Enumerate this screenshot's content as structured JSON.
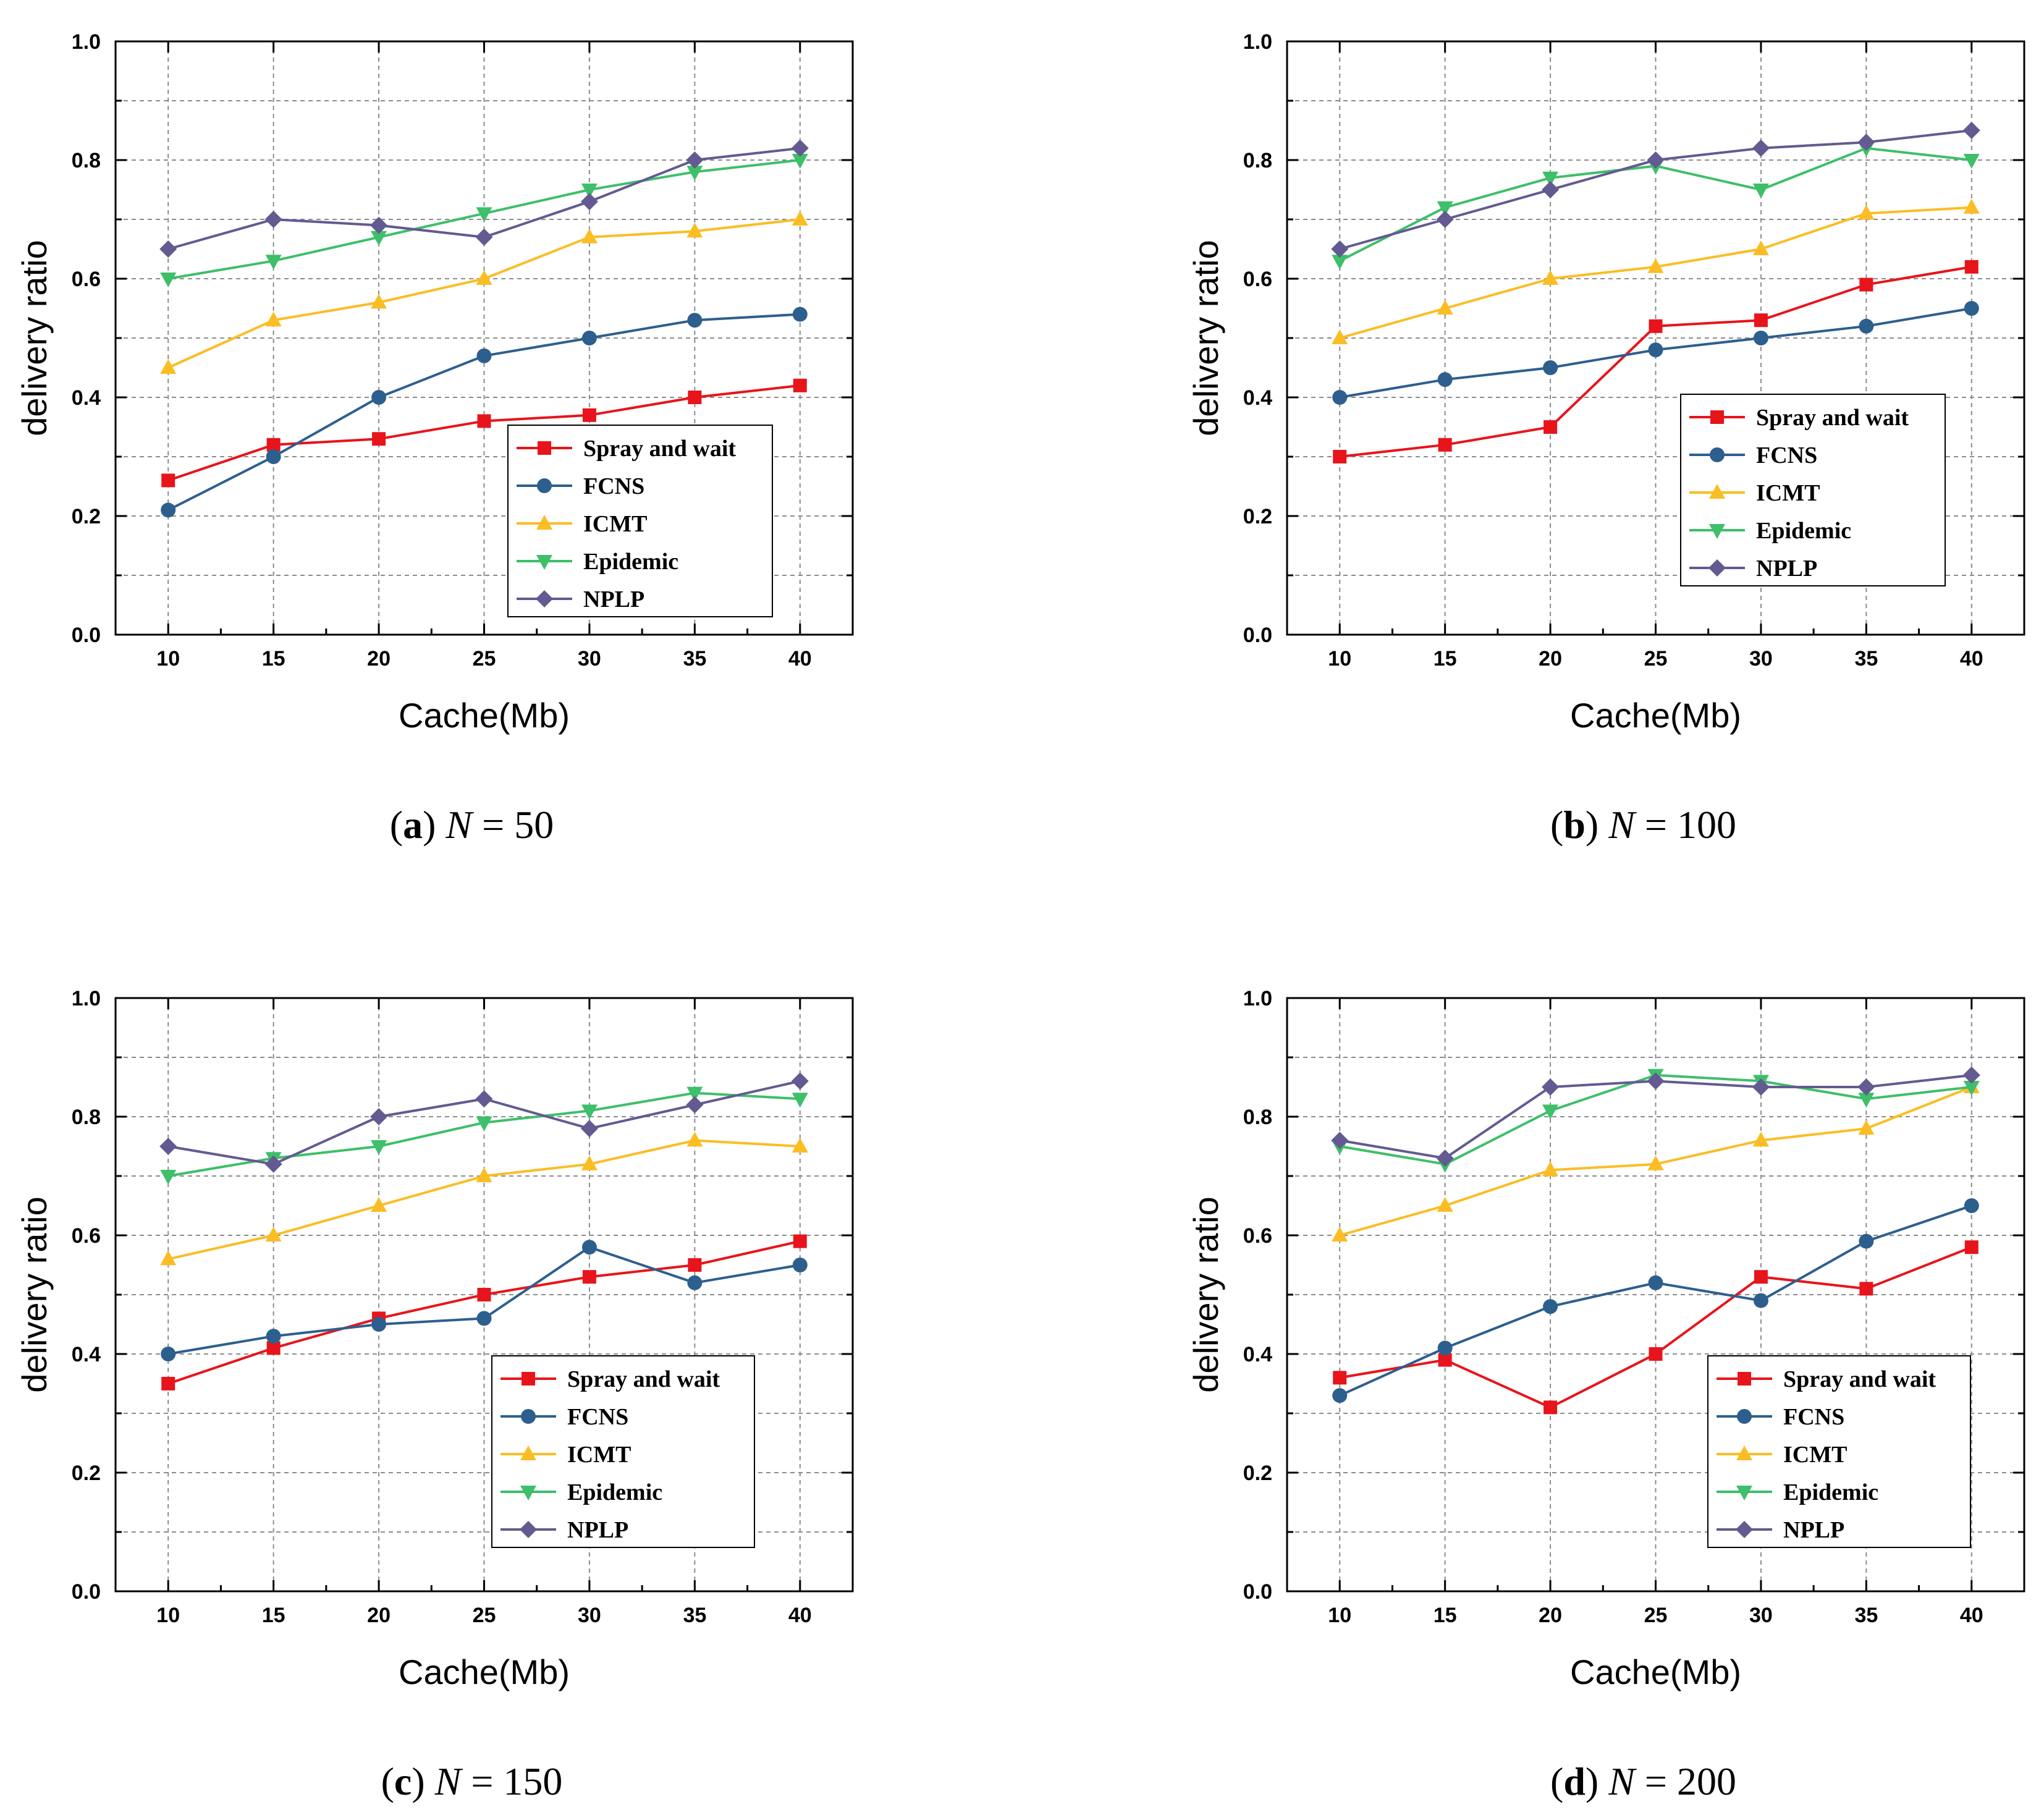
{
  "colors": {
    "Spray and wait": "#e8141b",
    "FCNS": "#2d5f8e",
    "ICMT": "#fbbd24",
    "Epidemic": "#3ebf6a",
    "NPLP": "#635a91"
  },
  "markers": {
    "Spray and wait": "square",
    "FCNS": "circle",
    "ICMT": "triangle-up",
    "Epidemic": "triangle-down",
    "NPLP": "diamond"
  },
  "chart_data": [
    {
      "type": "line",
      "caption_letter": "a",
      "caption_var": "N",
      "caption_eq": "= 50",
      "xlabel": "Cache(Mb)",
      "ylabel": "delivery ratio",
      "x": [
        10,
        15,
        20,
        25,
        30,
        35,
        40
      ],
      "xticks": [
        "10",
        "15",
        "20",
        "25",
        "30",
        "35",
        "40"
      ],
      "yticks": [
        "0.0",
        "0.2",
        "0.4",
        "0.6",
        "0.8",
        "1.0"
      ],
      "ylim": [
        0,
        1
      ],
      "grid": true,
      "legend_position": "lower-right",
      "series": [
        {
          "name": "Spray and wait",
          "values": [
            0.26,
            0.32,
            0.33,
            0.36,
            0.37,
            0.4,
            0.42
          ]
        },
        {
          "name": "FCNS",
          "values": [
            0.21,
            0.3,
            0.4,
            0.47,
            0.5,
            0.53,
            0.54
          ]
        },
        {
          "name": "ICMT",
          "values": [
            0.45,
            0.53,
            0.56,
            0.6,
            0.67,
            0.68,
            0.7
          ]
        },
        {
          "name": "Epidemic",
          "values": [
            0.6,
            0.63,
            0.67,
            0.71,
            0.75,
            0.78,
            0.8
          ]
        },
        {
          "name": "NPLP",
          "values": [
            0.65,
            0.7,
            0.69,
            0.67,
            0.73,
            0.8,
            0.82
          ]
        }
      ]
    },
    {
      "type": "line",
      "caption_letter": "b",
      "caption_var": "N",
      "caption_eq": "= 100",
      "xlabel": "Cache(Mb)",
      "ylabel": "delivery ratio",
      "x": [
        10,
        15,
        20,
        25,
        30,
        35,
        40
      ],
      "xticks": [
        "10",
        "15",
        "20",
        "25",
        "30",
        "35",
        "40"
      ],
      "yticks": [
        "0.0",
        "0.2",
        "0.4",
        "0.6",
        "0.8",
        "1.0"
      ],
      "ylim": [
        0,
        1
      ],
      "grid": true,
      "legend_position": "lower-right",
      "series": [
        {
          "name": "Spray and wait",
          "values": [
            0.3,
            0.32,
            0.35,
            0.52,
            0.53,
            0.59,
            0.62
          ]
        },
        {
          "name": "FCNS",
          "values": [
            0.4,
            0.43,
            0.45,
            0.48,
            0.5,
            0.52,
            0.55
          ]
        },
        {
          "name": "ICMT",
          "values": [
            0.5,
            0.55,
            0.6,
            0.62,
            0.65,
            0.71,
            0.72
          ]
        },
        {
          "name": "Epidemic",
          "values": [
            0.63,
            0.72,
            0.77,
            0.79,
            0.75,
            0.82,
            0.8
          ]
        },
        {
          "name": "NPLP",
          "values": [
            0.65,
            0.7,
            0.75,
            0.8,
            0.82,
            0.83,
            0.85
          ]
        }
      ]
    },
    {
      "type": "line",
      "caption_letter": "c",
      "caption_var": "N",
      "caption_eq": "= 150",
      "xlabel": "Cache(Mb)",
      "ylabel": "delivery ratio",
      "x": [
        10,
        15,
        20,
        25,
        30,
        35,
        40
      ],
      "xticks": [
        "10",
        "15",
        "20",
        "25",
        "30",
        "35",
        "40"
      ],
      "yticks": [
        "0.0",
        "0.2",
        "0.4",
        "0.6",
        "0.8",
        "1.0"
      ],
      "ylim": [
        0,
        1
      ],
      "grid": true,
      "legend_position": "lower-right",
      "series": [
        {
          "name": "Spray and wait",
          "values": [
            0.35,
            0.41,
            0.46,
            0.5,
            0.53,
            0.55,
            0.59
          ]
        },
        {
          "name": "FCNS",
          "values": [
            0.4,
            0.43,
            0.45,
            0.46,
            0.58,
            0.52,
            0.55
          ]
        },
        {
          "name": "ICMT",
          "values": [
            0.56,
            0.6,
            0.65,
            0.7,
            0.72,
            0.76,
            0.75
          ]
        },
        {
          "name": "Epidemic",
          "values": [
            0.7,
            0.73,
            0.75,
            0.79,
            0.81,
            0.84,
            0.83
          ]
        },
        {
          "name": "NPLP",
          "values": [
            0.75,
            0.72,
            0.8,
            0.83,
            0.78,
            0.82,
            0.86
          ]
        }
      ]
    },
    {
      "type": "line",
      "caption_letter": "d",
      "caption_var": "N",
      "caption_eq": "= 200",
      "xlabel": "Cache(Mb)",
      "ylabel": "delivery ratio",
      "x": [
        10,
        15,
        20,
        25,
        30,
        35,
        40
      ],
      "xticks": [
        "10",
        "15",
        "20",
        "25",
        "30",
        "35",
        "40"
      ],
      "yticks": [
        "0.0",
        "0.2",
        "0.4",
        "0.6",
        "0.8",
        "1.0"
      ],
      "ylim": [
        0,
        1
      ],
      "grid": true,
      "legend_position": "lower-right",
      "series": [
        {
          "name": "Spray and wait",
          "values": [
            0.36,
            0.39,
            0.31,
            0.4,
            0.53,
            0.51,
            0.58
          ]
        },
        {
          "name": "FCNS",
          "values": [
            0.33,
            0.41,
            0.48,
            0.52,
            0.49,
            0.59,
            0.65
          ]
        },
        {
          "name": "ICMT",
          "values": [
            0.6,
            0.65,
            0.71,
            0.72,
            0.76,
            0.78,
            0.85
          ]
        },
        {
          "name": "Epidemic",
          "values": [
            0.75,
            0.72,
            0.81,
            0.87,
            0.86,
            0.83,
            0.85
          ]
        },
        {
          "name": "NPLP",
          "values": [
            0.76,
            0.73,
            0.85,
            0.86,
            0.85,
            0.85,
            0.87
          ]
        }
      ]
    }
  ]
}
